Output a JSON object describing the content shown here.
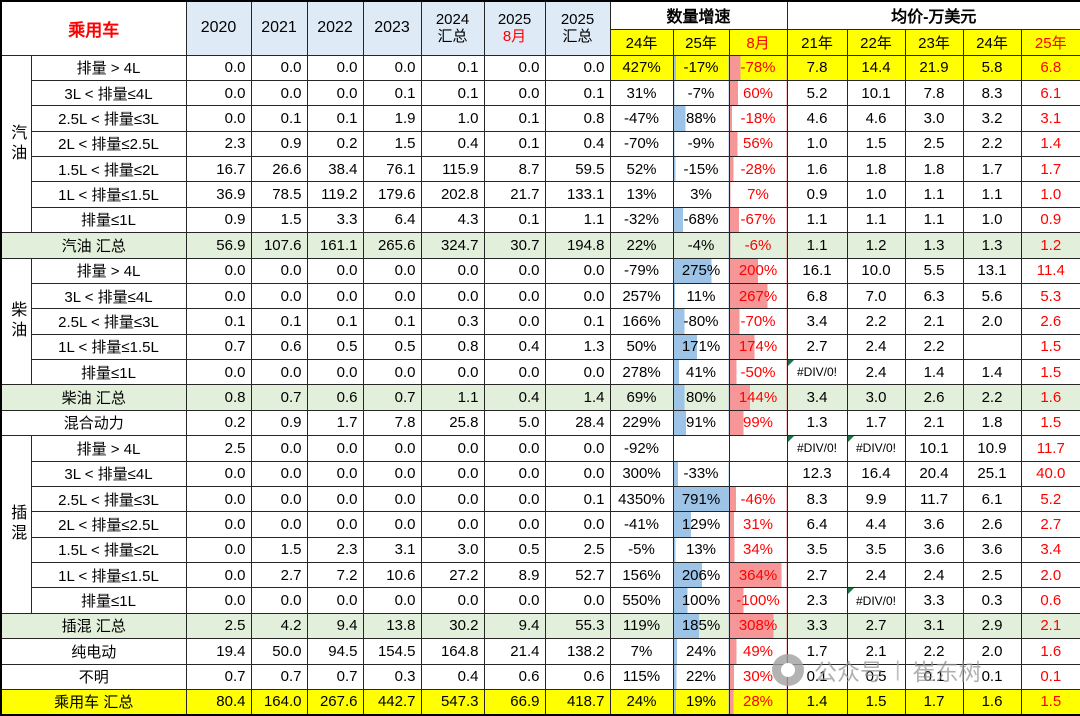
{
  "chart_data": {
    "type": "table",
    "title": "乘用车",
    "col_headers": {
      "years": [
        "2020",
        "2021",
        "2022",
        "2023"
      ],
      "stacked": [
        [
          "2024",
          "汇总"
        ],
        [
          "2025",
          "8月"
        ],
        [
          "2025",
          "汇总"
        ]
      ],
      "growth_title": "数量增速",
      "growth": [
        "24年",
        "25年",
        "8月"
      ],
      "price_title": "均价-万美元",
      "price": [
        "21年",
        "22年",
        "23年",
        "24年",
        "25年"
      ]
    },
    "colors": {
      "accent_red": "#FF0000",
      "header_blue": "#DEEBF7",
      "subtotal_green": "#E2EFDA",
      "highlight_yellow": "#FFFF00",
      "bar_blue": "#9DC3E6",
      "bar_red": "#F79696",
      "error_flag_green": "#1E7145"
    },
    "rows": [
      {
        "group": "汽油",
        "group_rows": 7,
        "in_group": true,
        "type": "data",
        "highlight": true,
        "label": "排量 > 4L",
        "values": [
          "0.0",
          "0.0",
          "0.0",
          "0.0",
          "0.1",
          "0.0",
          "0.0"
        ],
        "growth": [
          "427%",
          "-17%",
          "-78%"
        ],
        "price": [
          "7.8",
          "14.4",
          "21.9",
          "5.8",
          "6.8"
        ]
      },
      {
        "in_group": true,
        "type": "data",
        "label": "3L < 排量≤4L",
        "values": [
          "0.0",
          "0.0",
          "0.0",
          "0.1",
          "0.1",
          "0.0",
          "0.1"
        ],
        "growth": [
          "31%",
          "-7%",
          "60%"
        ],
        "price": [
          "5.2",
          "10.1",
          "7.8",
          "8.3",
          "6.1"
        ]
      },
      {
        "in_group": true,
        "type": "data",
        "label": "2.5L < 排量≤3L",
        "values": [
          "0.0",
          "0.1",
          "0.1",
          "1.9",
          "1.0",
          "0.1",
          "0.8"
        ],
        "growth": [
          "-47%",
          "88%",
          "-18%"
        ],
        "price": [
          "4.6",
          "4.6",
          "3.0",
          "3.2",
          "3.1"
        ]
      },
      {
        "in_group": true,
        "type": "data",
        "label": "2L < 排量≤2.5L",
        "values": [
          "2.3",
          "0.9",
          "0.2",
          "1.5",
          "0.4",
          "0.1",
          "0.4"
        ],
        "growth": [
          "-70%",
          "-9%",
          "56%"
        ],
        "price": [
          "1.0",
          "1.5",
          "2.5",
          "2.2",
          "1.4"
        ]
      },
      {
        "in_group": true,
        "type": "data",
        "label": "1.5L < 排量≤2L",
        "values": [
          "16.7",
          "26.6",
          "38.4",
          "76.1",
          "115.9",
          "8.7",
          "59.5"
        ],
        "growth": [
          "52%",
          "-15%",
          "-28%"
        ],
        "price": [
          "1.6",
          "1.8",
          "1.8",
          "1.7",
          "1.7"
        ]
      },
      {
        "in_group": true,
        "type": "data",
        "label": "1L < 排量≤1.5L",
        "values": [
          "36.9",
          "78.5",
          "119.2",
          "179.6",
          "202.8",
          "21.7",
          "133.1"
        ],
        "growth": [
          "13%",
          "3%",
          "7%"
        ],
        "price": [
          "0.9",
          "1.0",
          "1.1",
          "1.1",
          "1.0"
        ]
      },
      {
        "in_group": true,
        "type": "data",
        "label": "排量≤1L",
        "values": [
          "0.9",
          "1.5",
          "3.3",
          "6.4",
          "4.3",
          "0.1",
          "1.1"
        ],
        "growth": [
          "-32%",
          "-68%",
          "-67%"
        ],
        "price": [
          "1.1",
          "1.1",
          "1.1",
          "1.0",
          "0.9"
        ]
      },
      {
        "type": "subtotal",
        "label": "汽油 汇总",
        "values": [
          "56.9",
          "107.6",
          "161.1",
          "265.6",
          "324.7",
          "30.7",
          "194.8"
        ],
        "growth": [
          "22%",
          "-4%",
          "-6%"
        ],
        "price": [
          "1.1",
          "1.2",
          "1.3",
          "1.3",
          "1.2"
        ]
      },
      {
        "group": "柴油",
        "group_rows": 5,
        "in_group": true,
        "type": "data",
        "label": "排量 > 4L",
        "values": [
          "0.0",
          "0.0",
          "0.0",
          "0.0",
          "0.0",
          "0.0",
          "0.0"
        ],
        "growth": [
          "-79%",
          "275%",
          "200%"
        ],
        "price": [
          "16.1",
          "10.0",
          "5.5",
          "13.1",
          "11.4"
        ]
      },
      {
        "in_group": true,
        "type": "data",
        "label": "3L < 排量≤4L",
        "values": [
          "0.0",
          "0.0",
          "0.0",
          "0.0",
          "0.0",
          "0.0",
          "0.0"
        ],
        "growth": [
          "257%",
          "11%",
          "267%"
        ],
        "price": [
          "6.8",
          "7.0",
          "6.3",
          "5.6",
          "5.3"
        ]
      },
      {
        "in_group": true,
        "type": "data",
        "label": "2.5L < 排量≤3L",
        "values": [
          "0.1",
          "0.1",
          "0.1",
          "0.1",
          "0.3",
          "0.0",
          "0.1"
        ],
        "growth": [
          "166%",
          "-80%",
          "-70%"
        ],
        "price": [
          "3.4",
          "2.2",
          "2.1",
          "2.0",
          "2.6"
        ]
      },
      {
        "in_group": true,
        "type": "data",
        "label": "1L < 排量≤1.5L",
        "values": [
          "0.7",
          "0.6",
          "0.5",
          "0.5",
          "0.8",
          "0.4",
          "1.3"
        ],
        "growth": [
          "50%",
          "171%",
          "174%"
        ],
        "price": [
          "2.7",
          "2.4",
          "2.2",
          "",
          "1.5"
        ]
      },
      {
        "in_group": true,
        "type": "data",
        "label": "排量≤1L",
        "values": [
          "0.0",
          "0.0",
          "0.0",
          "0.0",
          "0.0",
          "0.0",
          "0.0"
        ],
        "growth": [
          "278%",
          "41%",
          "-50%"
        ],
        "price": [
          "#DIV/0!",
          "2.4",
          "1.4",
          "1.4",
          "1.5"
        ]
      },
      {
        "type": "subtotal",
        "label": "柴油 汇总",
        "values": [
          "0.8",
          "0.7",
          "0.6",
          "0.7",
          "1.1",
          "0.4",
          "1.4"
        ],
        "growth": [
          "69%",
          "80%",
          "144%"
        ],
        "price": [
          "3.4",
          "3.0",
          "2.6",
          "2.2",
          "1.6"
        ]
      },
      {
        "type": "data",
        "label": "混合动力",
        "values": [
          "0.2",
          "0.9",
          "1.7",
          "7.8",
          "25.8",
          "5.0",
          "28.4"
        ],
        "growth": [
          "229%",
          "91%",
          "99%"
        ],
        "price": [
          "1.3",
          "1.7",
          "2.1",
          "1.8",
          "1.5"
        ]
      },
      {
        "group": "插混",
        "group_rows": 7,
        "in_group": true,
        "type": "data",
        "label": "排量 > 4L",
        "values": [
          "2.5",
          "0.0",
          "0.0",
          "0.0",
          "0.0",
          "0.0",
          "0.0"
        ],
        "growth": [
          "-92%",
          "",
          ""
        ],
        "price": [
          "#DIV/0!",
          "#DIV/0!",
          "10.1",
          "10.9",
          "11.7"
        ]
      },
      {
        "in_group": true,
        "type": "data",
        "label": "3L < 排量≤4L",
        "values": [
          "0.0",
          "0.0",
          "0.0",
          "0.0",
          "0.0",
          "0.0",
          "0.0"
        ],
        "growth": [
          "300%",
          "-33%",
          ""
        ],
        "price": [
          "12.3",
          "16.4",
          "20.4",
          "25.1",
          "40.0"
        ]
      },
      {
        "in_group": true,
        "type": "data",
        "label": "2.5L < 排量≤3L",
        "values": [
          "0.0",
          "0.0",
          "0.0",
          "0.0",
          "0.0",
          "0.0",
          "0.1"
        ],
        "growth": [
          "4350%",
          "791%",
          "-46%"
        ],
        "price": [
          "8.3",
          "9.9",
          "11.7",
          "6.1",
          "5.2"
        ]
      },
      {
        "in_group": true,
        "type": "data",
        "label": "2L < 排量≤2.5L",
        "values": [
          "0.0",
          "0.0",
          "0.0",
          "0.0",
          "0.0",
          "0.0",
          "0.0"
        ],
        "growth": [
          "-41%",
          "129%",
          "31%"
        ],
        "price": [
          "6.4",
          "4.4",
          "3.6",
          "2.6",
          "2.7"
        ]
      },
      {
        "in_group": true,
        "type": "data",
        "label": "1.5L < 排量≤2L",
        "values": [
          "0.0",
          "1.5",
          "2.3",
          "3.1",
          "3.0",
          "0.5",
          "2.5"
        ],
        "growth": [
          "-5%",
          "13%",
          "34%"
        ],
        "price": [
          "3.5",
          "3.5",
          "3.6",
          "3.6",
          "3.4"
        ]
      },
      {
        "in_group": true,
        "type": "data",
        "label": "1L < 排量≤1.5L",
        "values": [
          "0.0",
          "2.7",
          "7.2",
          "10.6",
          "27.2",
          "8.9",
          "52.7"
        ],
        "growth": [
          "156%",
          "206%",
          "364%"
        ],
        "price": [
          "2.7",
          "2.4",
          "2.4",
          "2.5",
          "2.0"
        ]
      },
      {
        "in_group": true,
        "type": "data",
        "label": "排量≤1L",
        "values": [
          "0.0",
          "0.0",
          "0.0",
          "0.0",
          "0.0",
          "0.0",
          "0.0"
        ],
        "growth": [
          "550%",
          "100%",
          "-100%"
        ],
        "price": [
          "2.3",
          "#DIV/0!",
          "3.3",
          "0.3",
          "0.6"
        ]
      },
      {
        "type": "subtotal",
        "label": "插混 汇总",
        "values": [
          "2.5",
          "4.2",
          "9.4",
          "13.8",
          "30.2",
          "9.4",
          "55.3"
        ],
        "growth": [
          "119%",
          "185%",
          "308%"
        ],
        "price": [
          "3.3",
          "2.7",
          "3.1",
          "2.9",
          "2.1"
        ]
      },
      {
        "type": "data",
        "label": "纯电动",
        "values": [
          "19.4",
          "50.0",
          "94.5",
          "154.5",
          "164.8",
          "21.4",
          "138.2"
        ],
        "growth": [
          "7%",
          "24%",
          "49%"
        ],
        "price": [
          "1.7",
          "2.1",
          "2.2",
          "2.0",
          "1.6"
        ]
      },
      {
        "type": "data",
        "label": "不明",
        "values": [
          "0.7",
          "0.7",
          "0.7",
          "0.3",
          "0.4",
          "0.6",
          "0.6"
        ],
        "growth": [
          "115%",
          "22%",
          "30%"
        ],
        "price": [
          "0.1",
          "0.5",
          "0.1",
          "0.1",
          "0.1"
        ]
      },
      {
        "type": "grand",
        "label": "乘用车 汇总",
        "values": [
          "80.4",
          "164.0",
          "267.6",
          "442.7",
          "547.3",
          "66.9",
          "418.7"
        ],
        "growth": [
          "24%",
          "19%",
          "28%"
        ],
        "price": [
          "1.4",
          "1.5",
          "1.7",
          "1.6",
          "1.5"
        ]
      }
    ]
  },
  "watermark": {
    "account_label": "公众号",
    "divider": "|",
    "author": "崔东树"
  }
}
